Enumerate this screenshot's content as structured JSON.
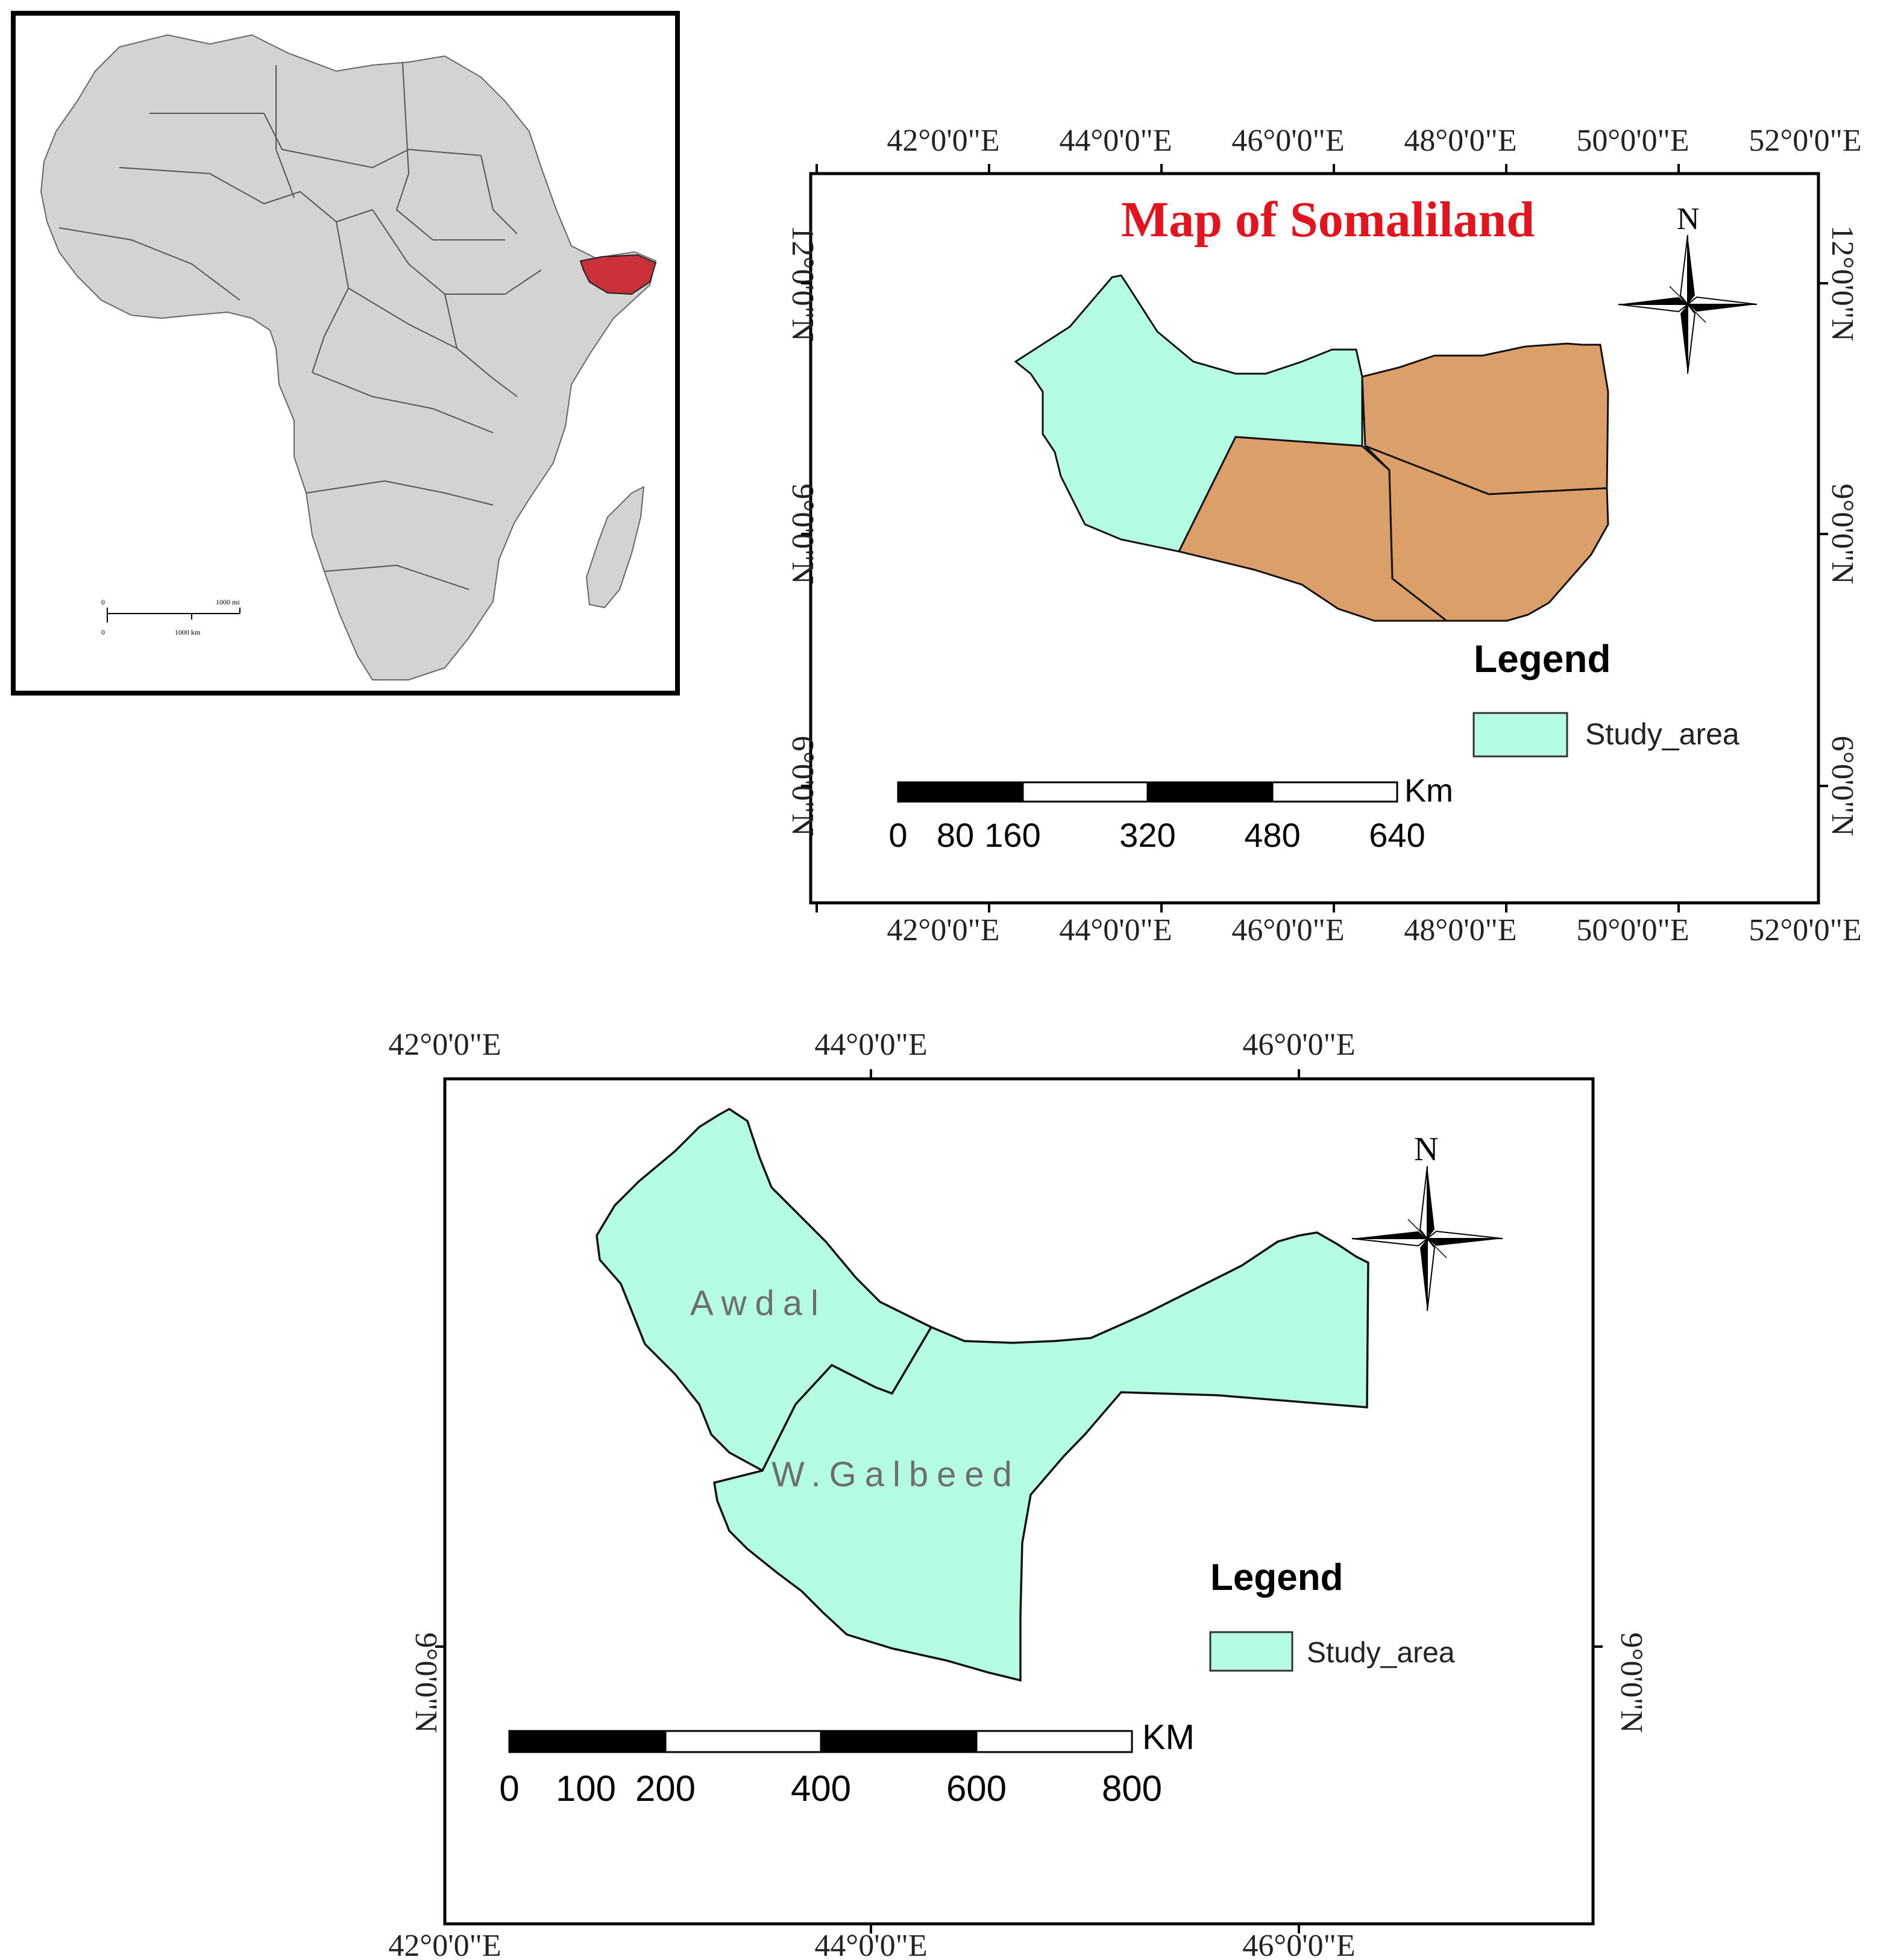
{
  "africa_inset": {
    "highlight_color": "#c8303a",
    "land_color": "#d3d3d3",
    "scale_bar": {
      "top_zero": "0",
      "top_label": "1000 mi",
      "bottom_zero": "0",
      "bottom_label": "1000 km"
    }
  },
  "somaliland_map": {
    "title": "Map of Somaliland",
    "title_color": "#e2141e",
    "lon_labels": [
      "42°0'0\"E",
      "44°0'0\"E",
      "46°0'0\"E",
      "48°0'0\"E",
      "50°0'0\"E",
      "52°0'0\"E"
    ],
    "lat_labels": [
      "12°0'0\"N",
      "9°0'0\"N",
      "6°0'0\"N"
    ],
    "north_label": "N",
    "legend": {
      "title": "Legend",
      "item": "Study_area",
      "swatch_color": "#b4fde3"
    },
    "other_regions_color": "#dd9f69",
    "scale_bar": {
      "unit": "Km",
      "ticks": [
        "0",
        "80",
        "160",
        "320",
        "480",
        "640"
      ]
    }
  },
  "study_area_map": {
    "lon_labels": [
      "42°0'0\"E",
      "44°0'0\"E",
      "46°0'0\"E"
    ],
    "lat_labels": [
      "9°0'0\"N"
    ],
    "north_label": "N",
    "regions": [
      {
        "name": "Awdal"
      },
      {
        "name": "W.Galbeed"
      }
    ],
    "legend": {
      "title": "Legend",
      "item": "Study_area",
      "swatch_color": "#b4fde3"
    },
    "scale_bar": {
      "unit": "KM",
      "ticks": [
        "0",
        "100",
        "200",
        "400",
        "600",
        "800"
      ]
    }
  }
}
